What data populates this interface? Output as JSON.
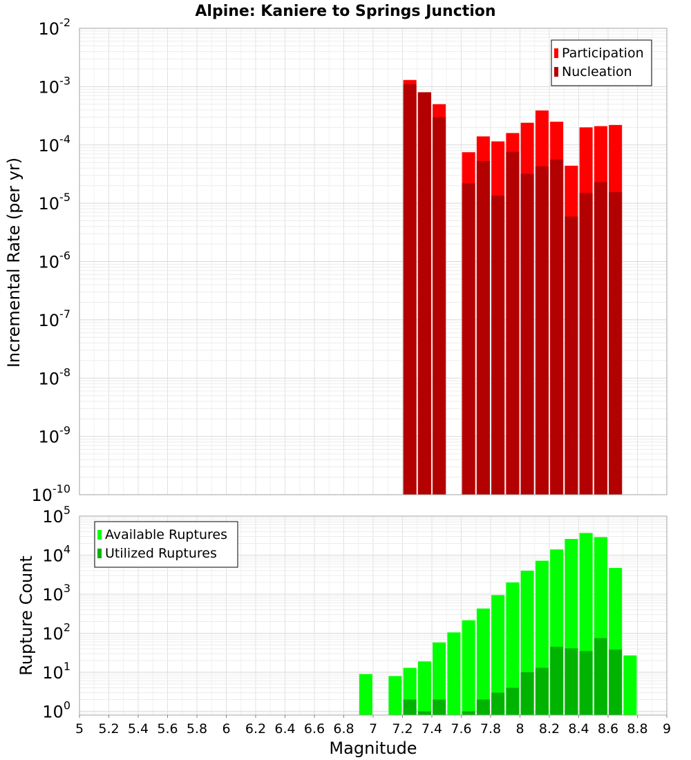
{
  "chart_data": [
    {
      "type": "bar",
      "title": "Alpine: Kaniere to Springs Junction",
      "ylabel": "Incremental Rate (per yr)",
      "yscale": "log",
      "ylim": [
        1e-10,
        0.01
      ],
      "xlim": [
        5,
        9
      ],
      "legend_placement": "top-right",
      "grid": true,
      "series": [
        {
          "name": "Participation",
          "color": "#ff0000",
          "x": [
            7.25,
            7.35,
            7.45,
            7.65,
            7.75,
            7.85,
            7.95,
            8.05,
            8.15,
            8.25,
            8.35,
            8.45,
            8.55,
            8.65
          ],
          "values": [
            0.0013,
            0.0008,
            0.0005,
            7.5e-05,
            0.00014,
            0.000115,
            0.00016,
            0.00024,
            0.00039,
            0.00025,
            4.4e-05,
            0.0002,
            0.00021,
            0.00022
          ]
        },
        {
          "name": "Nucleation",
          "color": "#b30000",
          "x": [
            7.25,
            7.35,
            7.45,
            7.65,
            7.75,
            7.85,
            7.95,
            8.05,
            8.15,
            8.25,
            8.35,
            8.45,
            8.55,
            8.65
          ],
          "values": [
            0.0011,
            0.0008,
            0.0003,
            2.2e-05,
            5.3e-05,
            1.35e-05,
            7.6e-05,
            3.2e-05,
            4.3e-05,
            5.6e-05,
            5.9e-06,
            1.5e-05,
            2.3e-05,
            1.55e-05
          ]
        }
      ],
      "y_tick_exponents": [
        -10,
        -9,
        -8,
        -7,
        -6,
        -5,
        -4,
        -3,
        -2
      ]
    },
    {
      "type": "bar",
      "xlabel": "Magnitude",
      "ylabel": "Rupture Count",
      "yscale": "log",
      "ylim": [
        0.8,
        100000
      ],
      "xlim": [
        5,
        9
      ],
      "legend_placement": "top-left",
      "grid": true,
      "x_tick_labels": [
        "5",
        "5.2",
        "5.4",
        "5.6",
        "5.8",
        "6",
        "6.2",
        "6.4",
        "6.6",
        "6.8",
        "7",
        "7.2",
        "7.4",
        "7.6",
        "7.8",
        "8",
        "8.2",
        "8.4",
        "8.6",
        "8.8",
        "9"
      ],
      "x_tick_values": [
        5,
        5.2,
        5.4,
        5.6,
        5.8,
        6,
        6.2,
        6.4,
        6.6,
        6.8,
        7,
        7.2,
        7.4,
        7.6,
        7.8,
        8,
        8.2,
        8.4,
        8.6,
        8.8,
        9
      ],
      "series": [
        {
          "name": "Available Ruptures",
          "color": "#00ff00",
          "x": [
            6.95,
            7.15,
            7.25,
            7.35,
            7.45,
            7.55,
            7.65,
            7.75,
            7.85,
            7.95,
            8.05,
            8.15,
            8.25,
            8.35,
            8.45,
            8.55,
            8.65,
            8.75
          ],
          "values": [
            9,
            8,
            13,
            19,
            58,
            105,
            215,
            430,
            950,
            2000,
            4000,
            7200,
            14000,
            26000,
            37000,
            29000,
            4700,
            27
          ]
        },
        {
          "name": "Utilized Ruptures",
          "color": "#00b300",
          "x": [
            7.25,
            7.35,
            7.45,
            7.65,
            7.75,
            7.85,
            7.95,
            8.05,
            8.15,
            8.25,
            8.35,
            8.45,
            8.55,
            8.65
          ],
          "values": [
            2,
            1,
            2,
            1,
            2,
            3,
            4,
            10,
            13,
            45,
            41,
            35,
            75,
            38
          ]
        }
      ],
      "y_tick_exponents": [
        0,
        1,
        2,
        3,
        4,
        5
      ]
    }
  ]
}
